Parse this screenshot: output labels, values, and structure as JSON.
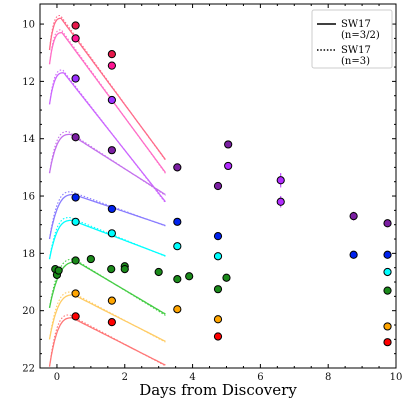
{
  "chart_data": {
    "type": "scatter",
    "xlabel": "Days from Discovery",
    "ylabel": "",
    "xlim": [
      -0.5,
      10
    ],
    "ylim": [
      22,
      9.3
    ],
    "y_inverted": true,
    "x_ticks": [
      "0",
      "2",
      "4",
      "6",
      "8",
      "10"
    ],
    "y_ticks": [
      "10",
      "12",
      "14",
      "16",
      "18",
      "20",
      "22"
    ],
    "grid": false,
    "legend_position": "top-right",
    "legend": [
      {
        "label": "SW17\n(n=3/2)",
        "style": "solid"
      },
      {
        "label": "SW17\n(n=3)",
        "style": "dotted"
      }
    ],
    "model_t_end": 3.2,
    "series": [
      {
        "color": "#e6194b",
        "model_color": "#ff6b8a",
        "points": [
          [
            0.55,
            10.05
          ],
          [
            1.62,
            11.05
          ]
        ],
        "model": {
          "m0": 10.9,
          "mpk": 9.8,
          "tpk": 0.12,
          "slope": 1.6
        }
      },
      {
        "color": "#ff1493",
        "model_color": "#ff6ec7",
        "points": [
          [
            0.55,
            10.5
          ],
          [
            1.62,
            11.45
          ]
        ],
        "model": {
          "m0": 11.4,
          "mpk": 10.3,
          "tpk": 0.15,
          "slope": 1.6
        }
      },
      {
        "color": "#9b30ff",
        "model_color": "#cc66ff",
        "points": [
          [
            0.55,
            11.9
          ],
          [
            1.62,
            12.65
          ]
        ],
        "model": {
          "m0": 12.8,
          "mpk": 11.7,
          "tpk": 0.2,
          "slope": 1.5
        }
      },
      {
        "color": "#7b1fa2",
        "model_color": "#c471ed",
        "points": [
          [
            0.55,
            13.95
          ],
          [
            1.62,
            14.4
          ],
          [
            3.55,
            15.0
          ],
          [
            4.75,
            15.65
          ],
          [
            5.05,
            14.2
          ],
          [
            8.75,
            16.7
          ],
          [
            9.75,
            16.95
          ]
        ],
        "errors": [
          0,
          0,
          0,
          0,
          0.12,
          0.15,
          0
        ],
        "model": {
          "m0": 15.2,
          "mpk": 13.85,
          "tpk": 0.4,
          "slope": 0.75
        }
      },
      {
        "color": "#b22cff",
        "model_color": "#d070ff",
        "points": [
          [
            5.05,
            14.95
          ],
          [
            6.6,
            15.45
          ],
          [
            6.6,
            16.2
          ]
        ],
        "errors": [
          0,
          0.25,
          0.2
        ]
      },
      {
        "color": "#0022ee",
        "model_color": "#8a7dff",
        "points": [
          [
            0.55,
            16.05
          ],
          [
            1.62,
            16.45
          ],
          [
            3.55,
            16.9
          ],
          [
            4.75,
            17.4
          ],
          [
            8.75,
            18.05
          ],
          [
            9.75,
            18.05
          ]
        ],
        "model": {
          "m0": 17.5,
          "mpk": 15.95,
          "tpk": 0.5,
          "slope": 0.4
        }
      },
      {
        "color": "#00ffff",
        "model_color": "#00ffff",
        "points": [
          [
            0.55,
            16.9
          ],
          [
            1.62,
            17.3
          ],
          [
            3.55,
            17.75
          ],
          [
            4.75,
            18.1
          ],
          [
            9.75,
            18.65
          ]
        ],
        "model": {
          "m0": 18.2,
          "mpk": 16.85,
          "tpk": 0.45,
          "slope": 0.45
        }
      },
      {
        "color": "#1b8a1b",
        "model_color": "#44cc44",
        "points": [
          [
            -0.05,
            18.55
          ],
          [
            0.0,
            18.75
          ],
          [
            0.05,
            18.6
          ],
          [
            0.55,
            18.25
          ],
          [
            1.0,
            18.2
          ],
          [
            1.6,
            18.55
          ],
          [
            2.0,
            18.45
          ],
          [
            2.0,
            18.55
          ],
          [
            3.0,
            18.65
          ],
          [
            3.55,
            18.9
          ],
          [
            3.9,
            18.8
          ],
          [
            4.75,
            19.25
          ],
          [
            5.0,
            18.85
          ],
          [
            9.75,
            19.3
          ]
        ],
        "model": {
          "m0": 19.9,
          "mpk": 18.3,
          "tpk": 0.6,
          "slope": 0.7
        }
      },
      {
        "color": "#ffa500",
        "model_color": "#ffcc66",
        "points": [
          [
            0.55,
            19.4
          ],
          [
            1.62,
            19.65
          ],
          [
            3.55,
            19.95
          ],
          [
            4.75,
            20.3
          ],
          [
            9.75,
            20.55
          ]
        ],
        "model": {
          "m0": 21.0,
          "mpk": 19.45,
          "tpk": 0.5,
          "slope": 0.6
        }
      },
      {
        "color": "#ff0000",
        "model_color": "#ff7777",
        "points": [
          [
            0.55,
            20.2
          ],
          [
            1.62,
            20.4
          ],
          [
            4.75,
            20.9
          ],
          [
            9.75,
            21.1
          ]
        ],
        "model": {
          "m0": 21.95,
          "mpk": 20.25,
          "tpk": 0.45,
          "slope": 0.6
        }
      }
    ]
  }
}
